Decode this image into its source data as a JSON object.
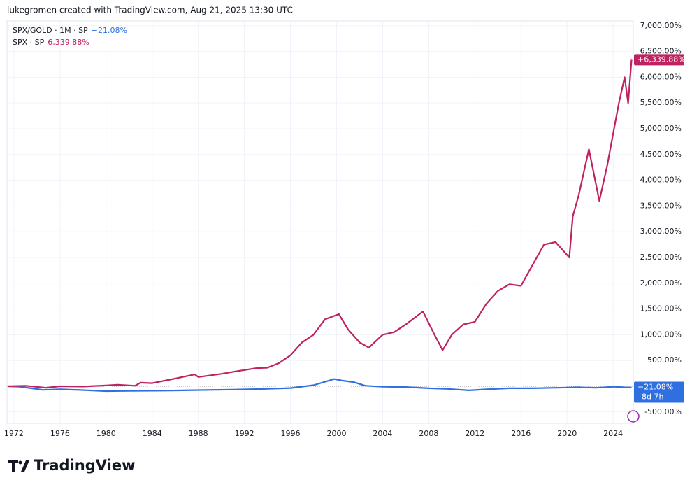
{
  "header": "lukegromen created with TradingView.com, Aug 21, 2025 13:30 UTC",
  "brand": "TradingView",
  "chart_data": {
    "type": "line",
    "xlim": [
      1971.4,
      2025.75
    ],
    "ylim": [
      -720,
      7092
    ],
    "xticks": [
      1972,
      1976,
      1980,
      1984,
      1988,
      1992,
      1996,
      2000,
      2004,
      2008,
      2012,
      2016,
      2020,
      2024
    ],
    "yticks": [
      {
        "value": -500,
        "label": "-500.00%"
      },
      {
        "value": 500,
        "label": "500.00%"
      },
      {
        "value": 1000,
        "label": "1,000.00%"
      },
      {
        "value": 1500,
        "label": "1,500.00%"
      },
      {
        "value": 2000,
        "label": "2,000.00%"
      },
      {
        "value": 2500,
        "label": "2,500.00%"
      },
      {
        "value": 3000,
        "label": "3,000.00%"
      },
      {
        "value": 3500,
        "label": "3,500.00%"
      },
      {
        "value": 4000,
        "label": "4,000.00%"
      },
      {
        "value": 4500,
        "label": "4,500.00%"
      },
      {
        "value": 5000,
        "label": "5,000.00%"
      },
      {
        "value": 5500,
        "label": "5,500.00%"
      },
      {
        "value": 6000,
        "label": "6,000.00%"
      },
      {
        "value": 6500,
        "label": "6,500.00%"
      },
      {
        "value": 7000,
        "label": "7,000.00%"
      }
    ],
    "grid": true,
    "series": [
      {
        "name": "SPX/GOLD · 1M · SP",
        "color": "#2f6fe0",
        "legend_label": "−21.08%",
        "badge_label": "−21.08%",
        "countdown": "8d 7h",
        "x": [
          1971.5,
          1972.5,
          1973.5,
          1974.5,
          1976,
          1978,
          1980,
          1982,
          1985,
          1988,
          1991,
          1994,
          1996,
          1998,
          1999.8,
          2000.5,
          2001.5,
          2002.5,
          2004,
          2006,
          2008,
          2009.5,
          2011.5,
          2013,
          2015,
          2017,
          2019,
          2021,
          2022.5,
          2024,
          2025,
          2025.6
        ],
        "values": [
          0,
          -10,
          -40,
          -70,
          -60,
          -75,
          -95,
          -90,
          -85,
          -75,
          -65,
          -50,
          -35,
          20,
          140,
          110,
          80,
          10,
          -10,
          -15,
          -40,
          -50,
          -80,
          -60,
          -40,
          -40,
          -30,
          -20,
          -30,
          -10,
          -20,
          -21.08
        ]
      },
      {
        "name": "SPX · SP",
        "color": "#c0215f",
        "legend_label": "6,339.88%",
        "badge_label": "+6,339.88%",
        "x": [
          1971.5,
          1973,
          1974.8,
          1976,
          1978,
          1980,
          1981,
          1982.5,
          1983,
          1984,
          1986,
          1987.7,
          1988,
          1990,
          1991,
          1993,
          1994,
          1995,
          1996,
          1997,
          1998,
          1999,
          2000.2,
          2001,
          2002,
          2002.8,
          2004,
          2005,
          2006,
          2007.5,
          2008.5,
          2009.2,
          2010,
          2011,
          2012,
          2013,
          2014,
          2015,
          2016,
          2017,
          2018,
          2019,
          2020.2,
          2020.5,
          2021,
          2021.9,
          2022.8,
          2023.5,
          2024,
          2024.5,
          2025,
          2025.3,
          2025.6
        ],
        "values": [
          0,
          10,
          -30,
          0,
          -5,
          15,
          30,
          10,
          70,
          60,
          150,
          230,
          180,
          240,
          280,
          350,
          360,
          450,
          600,
          850,
          1000,
          1300,
          1400,
          1100,
          850,
          750,
          1000,
          1050,
          1200,
          1450,
          1000,
          700,
          1000,
          1200,
          1250,
          1600,
          1850,
          1980,
          1950,
          2350,
          2750,
          2800,
          2500,
          3300,
          3700,
          4600,
          3600,
          4300,
          4900,
          5500,
          6000,
          5500,
          6339.88
        ]
      }
    ]
  }
}
